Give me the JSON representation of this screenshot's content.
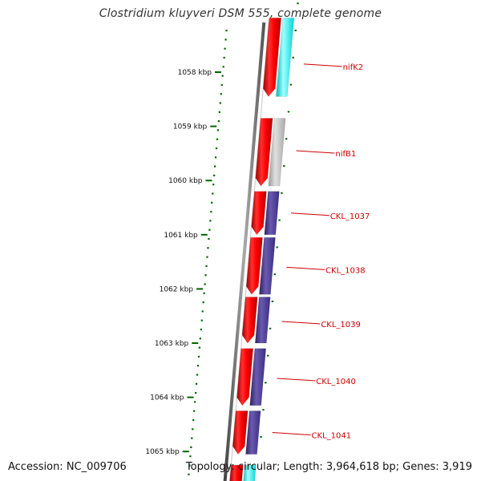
{
  "title": "Clostridium kluyveri DSM 555, complete genome",
  "footer": {
    "accession": "Accession: NC_009706",
    "summary": "Topology: circular; Length: 3,964,618 bp; Genes: 3,919"
  },
  "colors": {
    "cds_forward": "#ff0000",
    "annotation_cyan": "#00ffff",
    "annotation_gray": "#bbbbbb",
    "annotation_purple": "#4b3a8f",
    "tick": "#006600",
    "label": "#cc0000",
    "backbone": "#777777"
  },
  "scale_ticks": [
    {
      "kbp": 1058,
      "label": "1058 kbp"
    },
    {
      "kbp": 1059,
      "label": "1059 kbp"
    },
    {
      "kbp": 1060,
      "label": "1060 kbp"
    },
    {
      "kbp": 1061,
      "label": "1061 kbp"
    },
    {
      "kbp": 1062,
      "label": "1062 kbp"
    },
    {
      "kbp": 1063,
      "label": "1063 kbp"
    },
    {
      "kbp": 1064,
      "label": "1064 kbp"
    },
    {
      "kbp": 1065,
      "label": "1065 kbp"
    }
  ],
  "cds_forward": [
    {
      "start": 1057.0,
      "end": 1058.45
    },
    {
      "start": 1058.85,
      "end": 1060.1
    },
    {
      "start": 1060.2,
      "end": 1061.0
    },
    {
      "start": 1061.05,
      "end": 1062.1
    },
    {
      "start": 1062.15,
      "end": 1063.0
    },
    {
      "start": 1063.1,
      "end": 1064.15
    },
    {
      "start": 1064.25,
      "end": 1065.05
    },
    {
      "start": 1065.25,
      "end": 1065.7
    }
  ],
  "annotations": [
    {
      "name": "",
      "start": 1057.0,
      "end": 1058.45,
      "color": "cyan"
    },
    {
      "name": "nifK2",
      "start": 1057.0,
      "end": 1058.45,
      "color": "cyan",
      "label_kbp": 1057.85
    },
    {
      "name": "nifB1",
      "start": 1058.85,
      "end": 1060.1,
      "color": "gray",
      "label_kbp": 1059.45
    },
    {
      "name": "CKL_1037",
      "start": 1060.2,
      "end": 1061.0,
      "color": "purple",
      "label_kbp": 1060.6
    },
    {
      "name": "CKL_1038",
      "start": 1061.05,
      "end": 1062.1,
      "color": "purple",
      "label_kbp": 1061.6
    },
    {
      "name": "CKL_1039",
      "start": 1062.15,
      "end": 1063.0,
      "color": "purple",
      "label_kbp": 1062.6
    },
    {
      "name": "CKL_1040",
      "start": 1063.1,
      "end": 1064.15,
      "color": "purple",
      "label_kbp": 1063.65
    },
    {
      "name": "CKL_1041",
      "start": 1064.25,
      "end": 1065.05,
      "color": "purple",
      "label_kbp": 1064.65
    },
    {
      "name": "",
      "start": 1065.25,
      "end": 1065.7,
      "color": "cyan"
    }
  ]
}
